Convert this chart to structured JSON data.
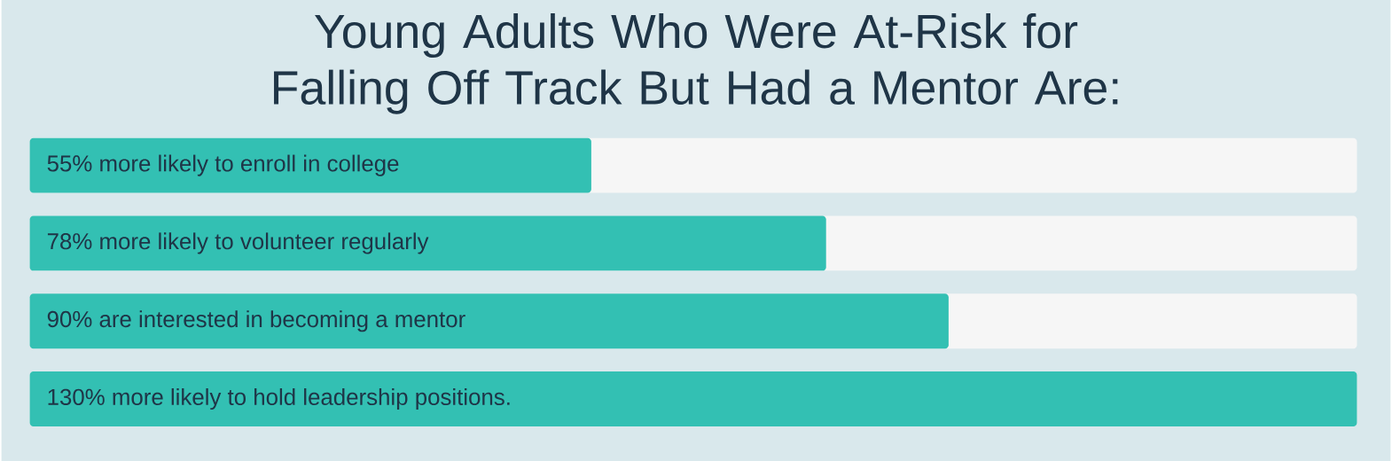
{
  "chart_data": {
    "type": "bar",
    "orientation": "horizontal",
    "title": "Young Adults Who Were At-Risk for Falling Off Track But Had a Mentor Are:",
    "categories": [
      "more likely to enroll in college",
      "more likely to volunteer regularly",
      "are interested in becoming a mentor",
      "more likely to hold leadership positions."
    ],
    "values": [
      55,
      78,
      90,
      130
    ],
    "value_labels": [
      "55%",
      "78%",
      "90%",
      "130%"
    ],
    "color": "#33c0b3",
    "xlim": [
      0,
      130
    ]
  }
}
